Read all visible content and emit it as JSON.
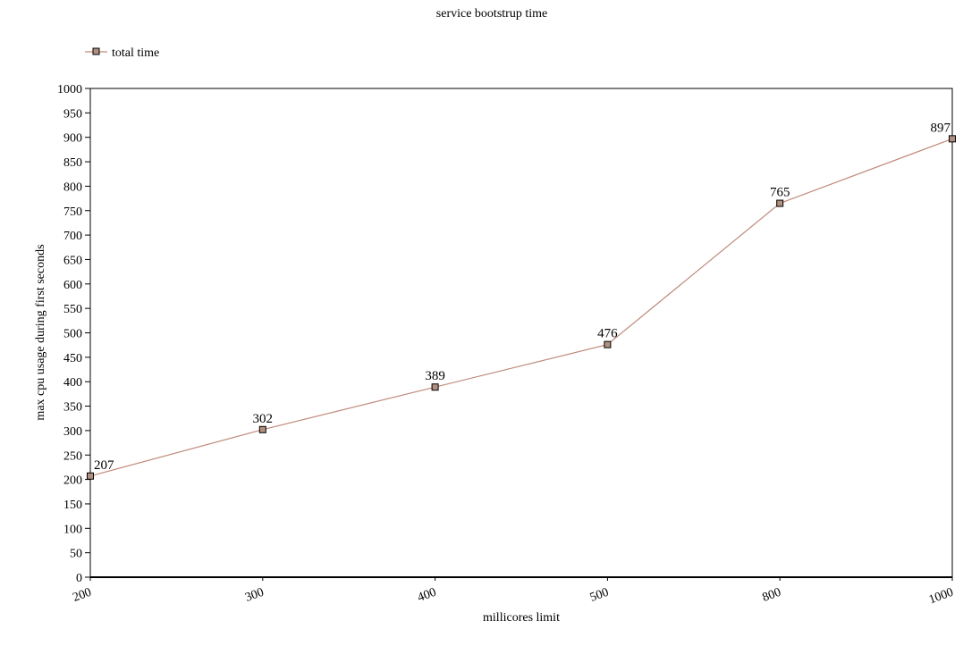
{
  "chart_data": {
    "type": "line",
    "title": "service bootstrup time",
    "xlabel": "millicores limit",
    "ylabel": "max cpu usage during first seconds",
    "categories": [
      "200",
      "300",
      "400",
      "500",
      "800",
      "1000"
    ],
    "series": [
      {
        "name": "total time",
        "values": [
          207,
          302,
          389,
          476,
          765,
          897
        ],
        "color": "#c08a7a",
        "marker_fill": "#b09080"
      }
    ],
    "ylim": [
      0,
      1000
    ],
    "yticks": [
      0,
      50,
      100,
      150,
      200,
      250,
      300,
      350,
      400,
      450,
      500,
      550,
      600,
      650,
      700,
      750,
      800,
      850,
      900,
      950,
      1000
    ],
    "grid": false,
    "legend_position": "top-left",
    "x_tick_rotation": "angled"
  }
}
